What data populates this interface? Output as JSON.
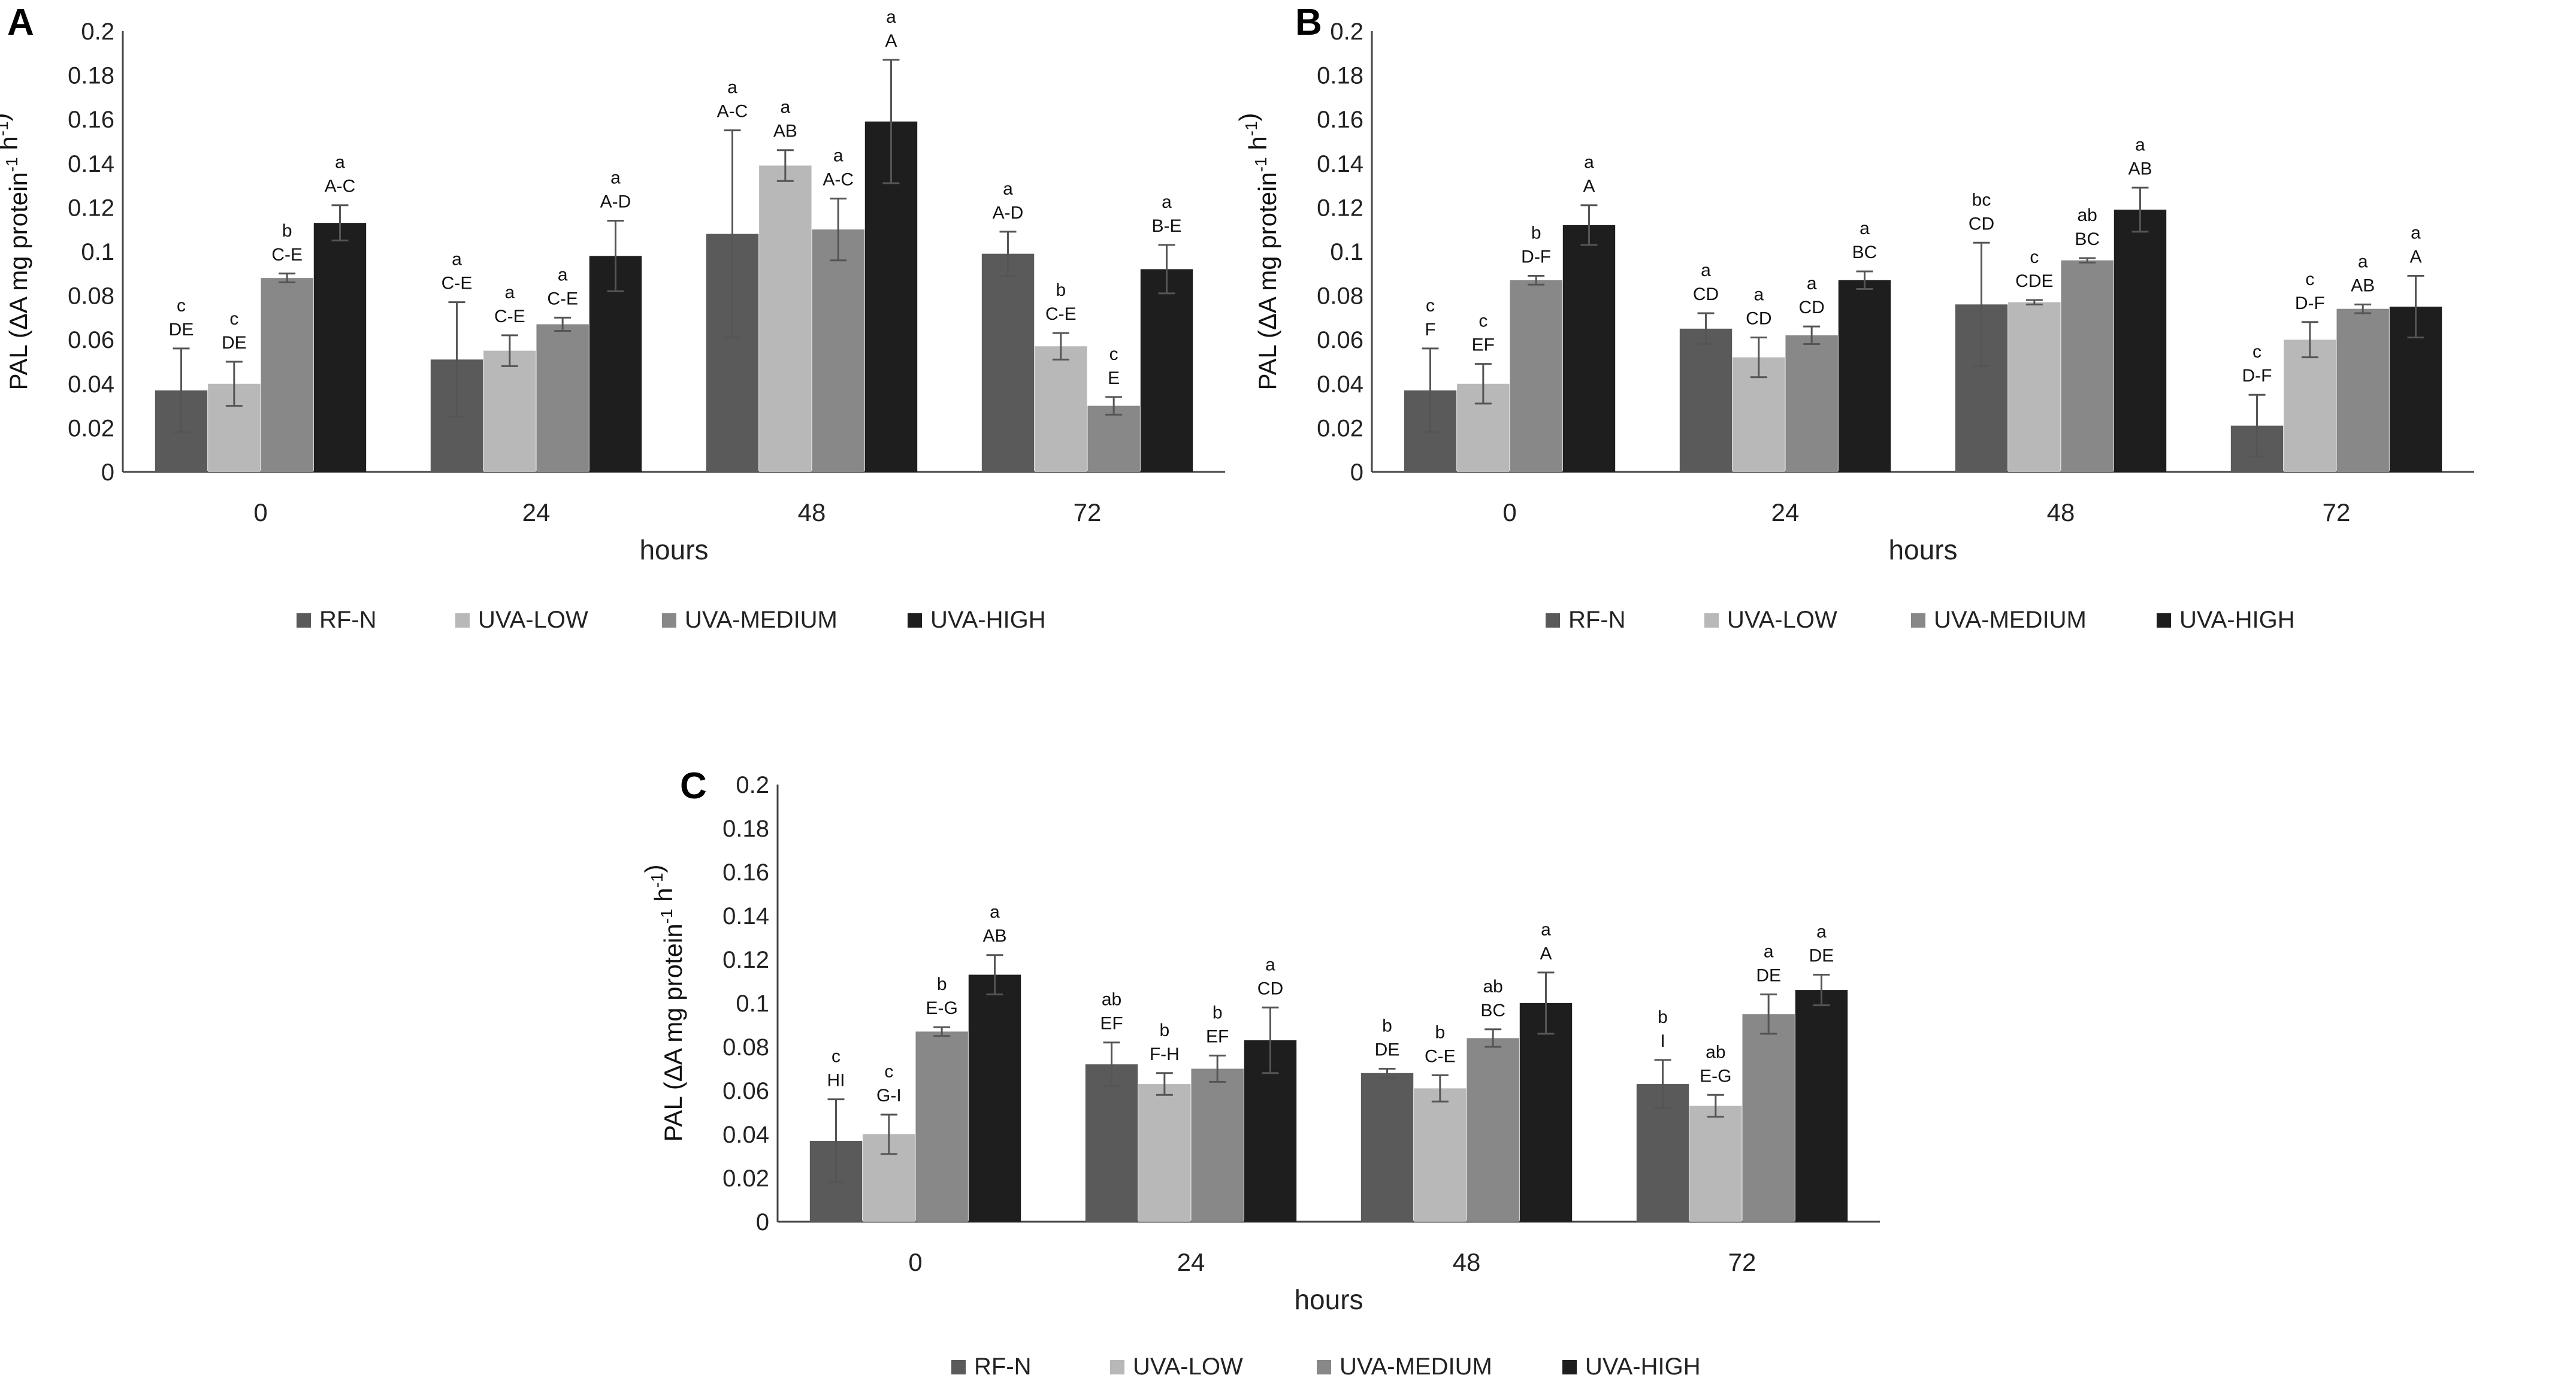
{
  "figure": {
    "series_names": [
      "RF-N",
      "UVA-LOW",
      "UVA-MEDIUM",
      "UVA-HIGH"
    ],
    "series_colors": [
      "#5a5a5a",
      "#b8b8b8",
      "#888888",
      "#1e1e1e"
    ]
  },
  "chart_data": [
    {
      "panel": "A",
      "type": "bar",
      "xlabel": "hours",
      "ylabel": "PAL (ΔA mg protein",
      "ylabel_sup1": "-1",
      "ylabel_mid": " h",
      "ylabel_sup2": "-1",
      "ylabel_end": ")",
      "ylim": [
        0,
        0.2
      ],
      "yticks": [
        "0",
        "0.02",
        "0.04",
        "0.06",
        "0.08",
        "0.1",
        "0.12",
        "0.14",
        "0.16",
        "0.18",
        "0.2"
      ],
      "categories": [
        "0",
        "24",
        "48",
        "72"
      ],
      "series": [
        {
          "name": "RF-N",
          "values": [
            0.037,
            0.051,
            0.108,
            0.099
          ],
          "errors": [
            0.019,
            0.026,
            0.047,
            0.01
          ],
          "letters": [
            "c",
            "a",
            "",
            "a"
          ],
          "groups": [
            "DE",
            "C-E",
            "",
            "A-D"
          ]
        },
        {
          "name": "UVA-LOW",
          "values": [
            0.04,
            0.055,
            0.139,
            0.057
          ],
          "errors": [
            0.01,
            0.007,
            0.007,
            0.006
          ],
          "letters": [
            "c",
            "a",
            "a",
            "b"
          ],
          "groups": [
            "DE",
            "C-E",
            "AB",
            "C-E"
          ]
        },
        {
          "name": "UVA-MEDIUM",
          "values": [
            0.088,
            0.067,
            0.11,
            0.03
          ],
          "errors": [
            0.002,
            0.003,
            0.014,
            0.004
          ],
          "letters": [
            "b",
            "a",
            "a",
            "c"
          ],
          "groups": [
            "C-E",
            "C-E",
            "A-C",
            "E"
          ]
        },
        {
          "name": "UVA-HIGH",
          "values": [
            0.113,
            0.098,
            0.159,
            0.092
          ],
          "errors": [
            0.008,
            0.016,
            0.028,
            0.011
          ],
          "letters": [
            "a",
            "a",
            "a",
            "a"
          ],
          "groups": [
            "A-C",
            "A-D",
            "A",
            "B-E"
          ]
        }
      ],
      "extra_annotations": [
        {
          "category": 2,
          "series": 0,
          "letter": "a",
          "group": "A-C"
        }
      ],
      "legend": [
        "RF-N",
        "UVA-LOW",
        "UVA-MEDIUM",
        "UVA-HIGH"
      ]
    },
    {
      "panel": "B",
      "type": "bar",
      "xlabel": "hours",
      "ylabel": "PAL (ΔA mg protein",
      "ylabel_sup1": "-1",
      "ylabel_mid": " h",
      "ylabel_sup2": "-1",
      "ylabel_end": ")",
      "ylim": [
        0,
        0.2
      ],
      "yticks": [
        "0",
        "0.02",
        "0.04",
        "0.06",
        "0.08",
        "0.1",
        "0.12",
        "0.14",
        "0.16",
        "0.18",
        "0.2"
      ],
      "categories": [
        "0",
        "24",
        "48",
        "72"
      ],
      "series": [
        {
          "name": "RF-N",
          "values": [
            0.037,
            0.065,
            0.076,
            0.021
          ],
          "errors": [
            0.019,
            0.007,
            0.028,
            0.014
          ],
          "letters": [
            "c",
            "a",
            "bc",
            "c"
          ],
          "groups": [
            "F",
            "CD",
            "CD",
            "D-F"
          ]
        },
        {
          "name": "UVA-LOW",
          "values": [
            0.04,
            0.052,
            0.077,
            0.06
          ],
          "errors": [
            0.009,
            0.009,
            0.001,
            0.008
          ],
          "letters": [
            "c",
            "a",
            "c",
            "c"
          ],
          "groups": [
            "EF",
            "CD",
            "CDE",
            "D-F"
          ]
        },
        {
          "name": "UVA-MEDIUM",
          "values": [
            0.087,
            0.062,
            0.096,
            0.074
          ],
          "errors": [
            0.002,
            0.004,
            0.001,
            0.002
          ],
          "letters": [
            "b",
            "a",
            "ab",
            "a"
          ],
          "groups": [
            "D-F",
            "CD",
            "BC",
            "AB"
          ]
        },
        {
          "name": "UVA-HIGH",
          "values": [
            0.112,
            0.087,
            0.119,
            0.075
          ],
          "errors": [
            0.009,
            0.004,
            0.01,
            0.014
          ],
          "letters": [
            "a",
            "a",
            "a",
            "a"
          ],
          "groups": [
            "A",
            "BC",
            "AB",
            "A"
          ]
        }
      ],
      "legend": [
        "RF-N",
        "UVA-LOW",
        "UVA-MEDIUM",
        "UVA-HIGH"
      ]
    },
    {
      "panel": "C",
      "type": "bar",
      "xlabel": "hours",
      "ylabel": "PAL (ΔA mg protein",
      "ylabel_sup1": "-1",
      "ylabel_mid": " h",
      "ylabel_sup2": "-1",
      "ylabel_end": ")",
      "ylim": [
        0,
        0.2
      ],
      "yticks": [
        "0",
        "0.02",
        "0.04",
        "0.06",
        "0.08",
        "0.1",
        "0.12",
        "0.14",
        "0.16",
        "0.18",
        "0.2"
      ],
      "categories": [
        "0",
        "24",
        "48",
        "72"
      ],
      "series": [
        {
          "name": "RF-N",
          "values": [
            0.037,
            0.072,
            0.068,
            0.063
          ],
          "errors": [
            0.019,
            0.01,
            0.002,
            0.011
          ],
          "letters": [
            "c",
            "ab",
            "b",
            "b"
          ],
          "groups": [
            "HI",
            "EF",
            "DE",
            "I"
          ]
        },
        {
          "name": "UVA-LOW",
          "values": [
            0.04,
            0.063,
            0.061,
            0.053
          ],
          "errors": [
            0.009,
            0.005,
            0.006,
            0.005
          ],
          "letters": [
            "c",
            "b",
            "b",
            "ab"
          ],
          "groups": [
            "G-I",
            "F-H",
            "C-E",
            "E-G"
          ]
        },
        {
          "name": "UVA-MEDIUM",
          "values": [
            0.087,
            0.07,
            0.084,
            0.095
          ],
          "errors": [
            0.002,
            0.006,
            0.004,
            0.009
          ],
          "letters": [
            "b",
            "b",
            "ab",
            "a"
          ],
          "groups": [
            "E-G",
            "EF",
            "BC",
            "DE"
          ]
        },
        {
          "name": "UVA-HIGH",
          "values": [
            0.113,
            0.083,
            0.1,
            0.106
          ],
          "errors": [
            0.009,
            0.015,
            0.014,
            0.007
          ],
          "letters": [
            "a",
            "a",
            "a",
            "a"
          ],
          "groups": [
            "AB",
            "CD",
            "A",
            "DE"
          ]
        }
      ],
      "legend": [
        "RF-N",
        "UVA-LOW",
        "UVA-MEDIUM",
        "UVA-HIGH"
      ]
    }
  ]
}
